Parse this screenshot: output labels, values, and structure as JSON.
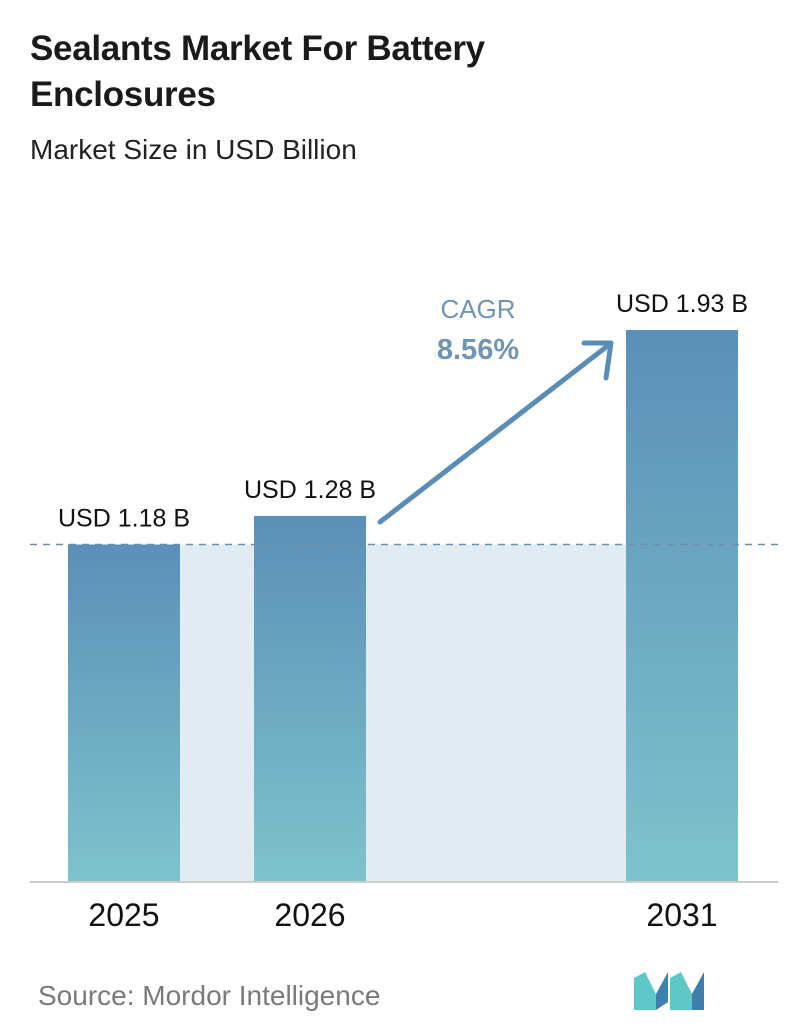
{
  "header": {
    "title_line1": "Sealants Market For Battery",
    "title_line2": "Enclosures",
    "subtitle": "Market Size in USD Billion"
  },
  "footer": {
    "source": "Source: Mordor Intelligence",
    "logo_icon": "mordor-intelligence-logo-icon"
  },
  "colors": {
    "bar_top": "#5b8fb8",
    "bar_bottom": "#7ec3cb",
    "band": "#e1ebf2",
    "arrow": "#5a8db6",
    "axis": "#cccccc"
  },
  "chart_data": {
    "type": "bar",
    "title": "Sealants Market For Battery Enclosures",
    "subtitle": "Market Size in USD Billion",
    "categories": [
      "2025",
      "2026",
      "2031"
    ],
    "values": [
      1.18,
      1.28,
      1.93
    ],
    "value_labels": [
      "USD 1.18 B",
      "USD 1.28 B",
      "USD 1.93 B"
    ],
    "ylim": [
      0,
      2.2
    ],
    "grid": false,
    "reference_line_value": 1.18,
    "annotation": {
      "label": "CAGR",
      "value": "8.56%"
    }
  }
}
